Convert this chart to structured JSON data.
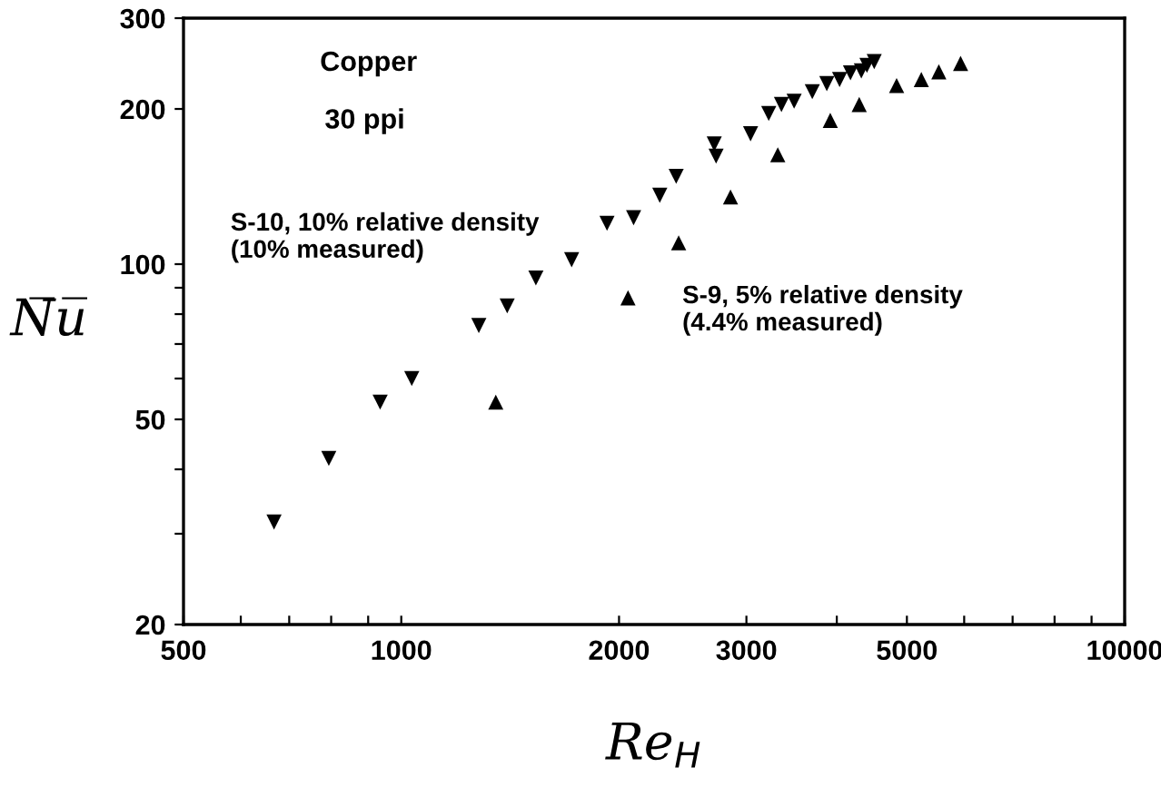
{
  "chart_data": {
    "type": "scatter",
    "log": "xy",
    "grid": false,
    "legend": false,
    "xlabel": "Re$_{H}$",
    "ylabel": "N̅u̅",
    "xlim": [
      500,
      10000
    ],
    "ylim": [
      20,
      300
    ],
    "xticks": [
      500,
      {
        "value": 600,
        "label": null
      },
      {
        "value": 700,
        "label": null
      },
      {
        "value": 800,
        "label": null
      },
      {
        "value": 900,
        "label": null
      },
      1000,
      2000,
      3000,
      {
        "value": 4000,
        "label": null
      },
      5000,
      {
        "value": 6000,
        "label": null
      },
      {
        "value": 7000,
        "label": null
      },
      {
        "value": 8000,
        "label": null
      },
      {
        "value": 9000,
        "label": null
      },
      10000
    ],
    "yticks": [
      20,
      {
        "value": 30,
        "label": null
      },
      {
        "value": 40,
        "label": null
      },
      50,
      {
        "value": 60,
        "label": null
      },
      {
        "value": 70,
        "label": null
      },
      {
        "value": 80,
        "label": null
      },
      {
        "value": 90,
        "label": null
      },
      100,
      200,
      300
    ],
    "annotations": [
      "Copper",
      "30 ppi"
    ],
    "series": [
      {
        "name": "S-10, 10% relative density\n(10% measured)",
        "color": "#000000",
        "marker": "triangle_down",
        "x": [
          667,
          794,
          935,
          1034,
          1280,
          1401,
          1535,
          1720,
          1925,
          2095,
          2277,
          2399,
          2708,
          2724,
          3040,
          3221,
          3354,
          3492,
          3700,
          3875,
          4036,
          4178,
          4325,
          4403,
          4506
        ],
        "values": [
          31.6,
          42,
          54,
          60,
          76,
          83,
          94,
          102,
          120,
          123,
          136,
          148,
          171,
          162,
          179,
          196,
          204,
          207,
          216,
          224,
          228,
          235,
          237,
          243,
          247
        ]
      },
      {
        "name": "S-9, 5% relative density\n(4.4% measured)",
        "color": "#000000",
        "marker": "triangle",
        "x": [
          1351,
          2058,
          2418,
          2852,
          3315,
          3918,
          4296,
          4839,
          5235,
          5535,
          5932
        ],
        "values": [
          54,
          86,
          110,
          135,
          163,
          190,
          204,
          222,
          228,
          236,
          245
        ]
      }
    ]
  }
}
